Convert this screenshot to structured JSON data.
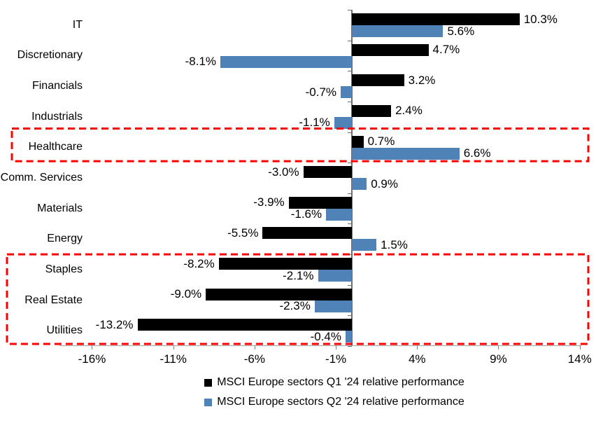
{
  "chart_data": {
    "type": "bar",
    "orientation": "horizontal",
    "categories": [
      "IT",
      "Discretionary",
      "Financials",
      "Industrials",
      "Healthcare",
      "Comm. Services",
      "Materials",
      "Energy",
      "Staples",
      "Real Estate",
      "Utilities"
    ],
    "series": [
      {
        "name": "MSCI Europe sectors Q1 '24 relative performance",
        "color": "#000000",
        "values": [
          10.3,
          4.7,
          3.2,
          2.4,
          0.7,
          -3.0,
          -3.9,
          -5.5,
          -8.2,
          -9.0,
          -13.2
        ],
        "labels": [
          "10.3%",
          "4.7%",
          "3.2%",
          "2.4%",
          "0.7%",
          "-3.0%",
          "-3.9%",
          "-5.5%",
          "-8.2%",
          "-9.0%",
          "-13.2%"
        ]
      },
      {
        "name": "MSCI Europe sectors Q2 '24 relative performance",
        "color": "#4F82B6",
        "values": [
          5.6,
          -8.1,
          -0.7,
          -1.1,
          6.6,
          0.9,
          -1.6,
          1.5,
          -2.1,
          -2.3,
          -0.4
        ],
        "labels": [
          "5.6%",
          "-8.1%",
          "-0.7%",
          "-1.1%",
          "6.6%",
          "0.9%",
          "-1.6%",
          "1.5%",
          "-2.1%",
          "-2.3%",
          "-0.4%"
        ]
      }
    ],
    "x_axis": {
      "min": -18.0,
      "max": 14.1,
      "ticks": [
        {
          "value": -16,
          "label": "-16%"
        },
        {
          "value": -11,
          "label": "-11%"
        },
        {
          "value": -6,
          "label": "-6%"
        },
        {
          "value": -1,
          "label": "-1%"
        },
        {
          "value": 4,
          "label": "4%"
        },
        {
          "value": 9,
          "label": "9%"
        },
        {
          "value": 14,
          "label": "14%"
        }
      ]
    },
    "highlights": [
      {
        "name": "healthcare-highlight",
        "start_row": 4,
        "end_row": 4,
        "color": "#FF0000"
      },
      {
        "name": "defensives-highlight",
        "start_row": 8,
        "end_row": 10,
        "color": "#FF0000"
      }
    ],
    "legend": [
      {
        "label": "MSCI Europe sectors Q1 '24 relative performance",
        "color": "#000000"
      },
      {
        "label": "MSCI Europe sectors Q2 '24 relative performance",
        "color": "#4F82B6"
      }
    ],
    "title": "",
    "grid": false,
    "legend_position": "bottom"
  }
}
